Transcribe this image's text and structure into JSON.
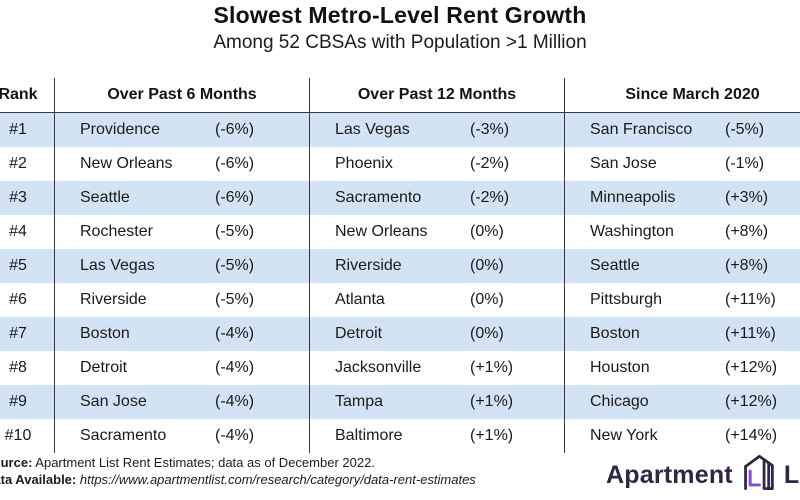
{
  "title": "Slowest Metro-Level Rent Growth",
  "subtitle": "Among 52 CBSAs with Population >1 Million",
  "table": {
    "rank_header": "Rank",
    "ranks": [
      "#1",
      "#2",
      "#3",
      "#4",
      "#5",
      "#6",
      "#7",
      "#8",
      "#9",
      "#10"
    ],
    "columns": [
      {
        "header": "Over Past 6 Months",
        "rows": [
          {
            "city": "Providence",
            "value": "(-6%)"
          },
          {
            "city": "New Orleans",
            "value": "(-6%)"
          },
          {
            "city": "Seattle",
            "value": "(-6%)"
          },
          {
            "city": "Rochester",
            "value": "(-5%)"
          },
          {
            "city": "Las Vegas",
            "value": "(-5%)"
          },
          {
            "city": "Riverside",
            "value": "(-5%)"
          },
          {
            "city": "Boston",
            "value": "(-4%)"
          },
          {
            "city": "Detroit",
            "value": "(-4%)"
          },
          {
            "city": "San Jose",
            "value": "(-4%)"
          },
          {
            "city": "Sacramento",
            "value": "(-4%)"
          }
        ]
      },
      {
        "header": "Over Past 12 Months",
        "rows": [
          {
            "city": "Las Vegas",
            "value": "(-3%)"
          },
          {
            "city": "Phoenix",
            "value": "(-2%)"
          },
          {
            "city": "Sacramento",
            "value": "(-2%)"
          },
          {
            "city": "New Orleans",
            "value": "(0%)"
          },
          {
            "city": "Riverside",
            "value": "(0%)"
          },
          {
            "city": "Atlanta",
            "value": "(0%)"
          },
          {
            "city": "Detroit",
            "value": "(0%)"
          },
          {
            "city": "Jacksonville",
            "value": "(+1%)"
          },
          {
            "city": "Tampa",
            "value": "(+1%)"
          },
          {
            "city": "Baltimore",
            "value": "(+1%)"
          }
        ]
      },
      {
        "header": "Since March 2020",
        "rows": [
          {
            "city": "San Francisco",
            "value": "(-5%)"
          },
          {
            "city": "San Jose",
            "value": "(-1%)"
          },
          {
            "city": "Minneapolis",
            "value": "(+3%)"
          },
          {
            "city": "Washington",
            "value": "(+8%)"
          },
          {
            "city": "Seattle",
            "value": "(+8%)"
          },
          {
            "city": "Pittsburgh",
            "value": "(+11%)"
          },
          {
            "city": "Boston",
            "value": "(+11%)"
          },
          {
            "city": "Houston",
            "value": "(+12%)"
          },
          {
            "city": "Chicago",
            "value": "(+12%)"
          },
          {
            "city": "New York",
            "value": "(+14%)"
          }
        ]
      }
    ]
  },
  "footer": {
    "source_label": "Source:",
    "source_text": " Apartment List Rent Estimates; data as of December 2022.",
    "data_label": "Data Available:",
    "data_url": " https://www.apartmentlist.com/research/category/data-rent-estimates"
  },
  "logo": {
    "part1": "Apartment",
    "part2": "List"
  },
  "colors": {
    "row_alt_blue": "#d2e4f3",
    "line": "#3a3a3a",
    "logo_dark": "#2d2844",
    "logo_purple": "#8247e5"
  },
  "chart_data": {
    "type": "table",
    "title": "Slowest Metro-Level Rent Growth",
    "subtitle": "Among 52 CBSAs with Population >1 Million",
    "columns": [
      "Rank",
      "Over Past 6 Months",
      "Over Past 12 Months",
      "Since March 2020"
    ],
    "rows": [
      [
        "#1",
        "Providence (-6%)",
        "Las Vegas (-3%)",
        "San Francisco (-5%)"
      ],
      [
        "#2",
        "New Orleans (-6%)",
        "Phoenix (-2%)",
        "San Jose (-1%)"
      ],
      [
        "#3",
        "Seattle (-6%)",
        "Sacramento (-2%)",
        "Minneapolis (+3%)"
      ],
      [
        "#4",
        "Rochester (-5%)",
        "New Orleans (0%)",
        "Washington (+8%)"
      ],
      [
        "#5",
        "Las Vegas (-5%)",
        "Riverside (0%)",
        "Seattle (+8%)"
      ],
      [
        "#6",
        "Riverside (-5%)",
        "Atlanta (0%)",
        "Pittsburgh (+11%)"
      ],
      [
        "#7",
        "Boston (-4%)",
        "Detroit (0%)",
        "Boston (+11%)"
      ],
      [
        "#8",
        "Detroit (-4%)",
        "Jacksonville (+1%)",
        "Houston (+12%)"
      ],
      [
        "#9",
        "San Jose (-4%)",
        "Tampa (+1%)",
        "Chicago (+12%)"
      ],
      [
        "#10",
        "Sacramento (-4%)",
        "Baltimore (+1%)",
        "New York (+14%)"
      ]
    ],
    "source": "Apartment List Rent Estimates; data as of December 2022."
  }
}
